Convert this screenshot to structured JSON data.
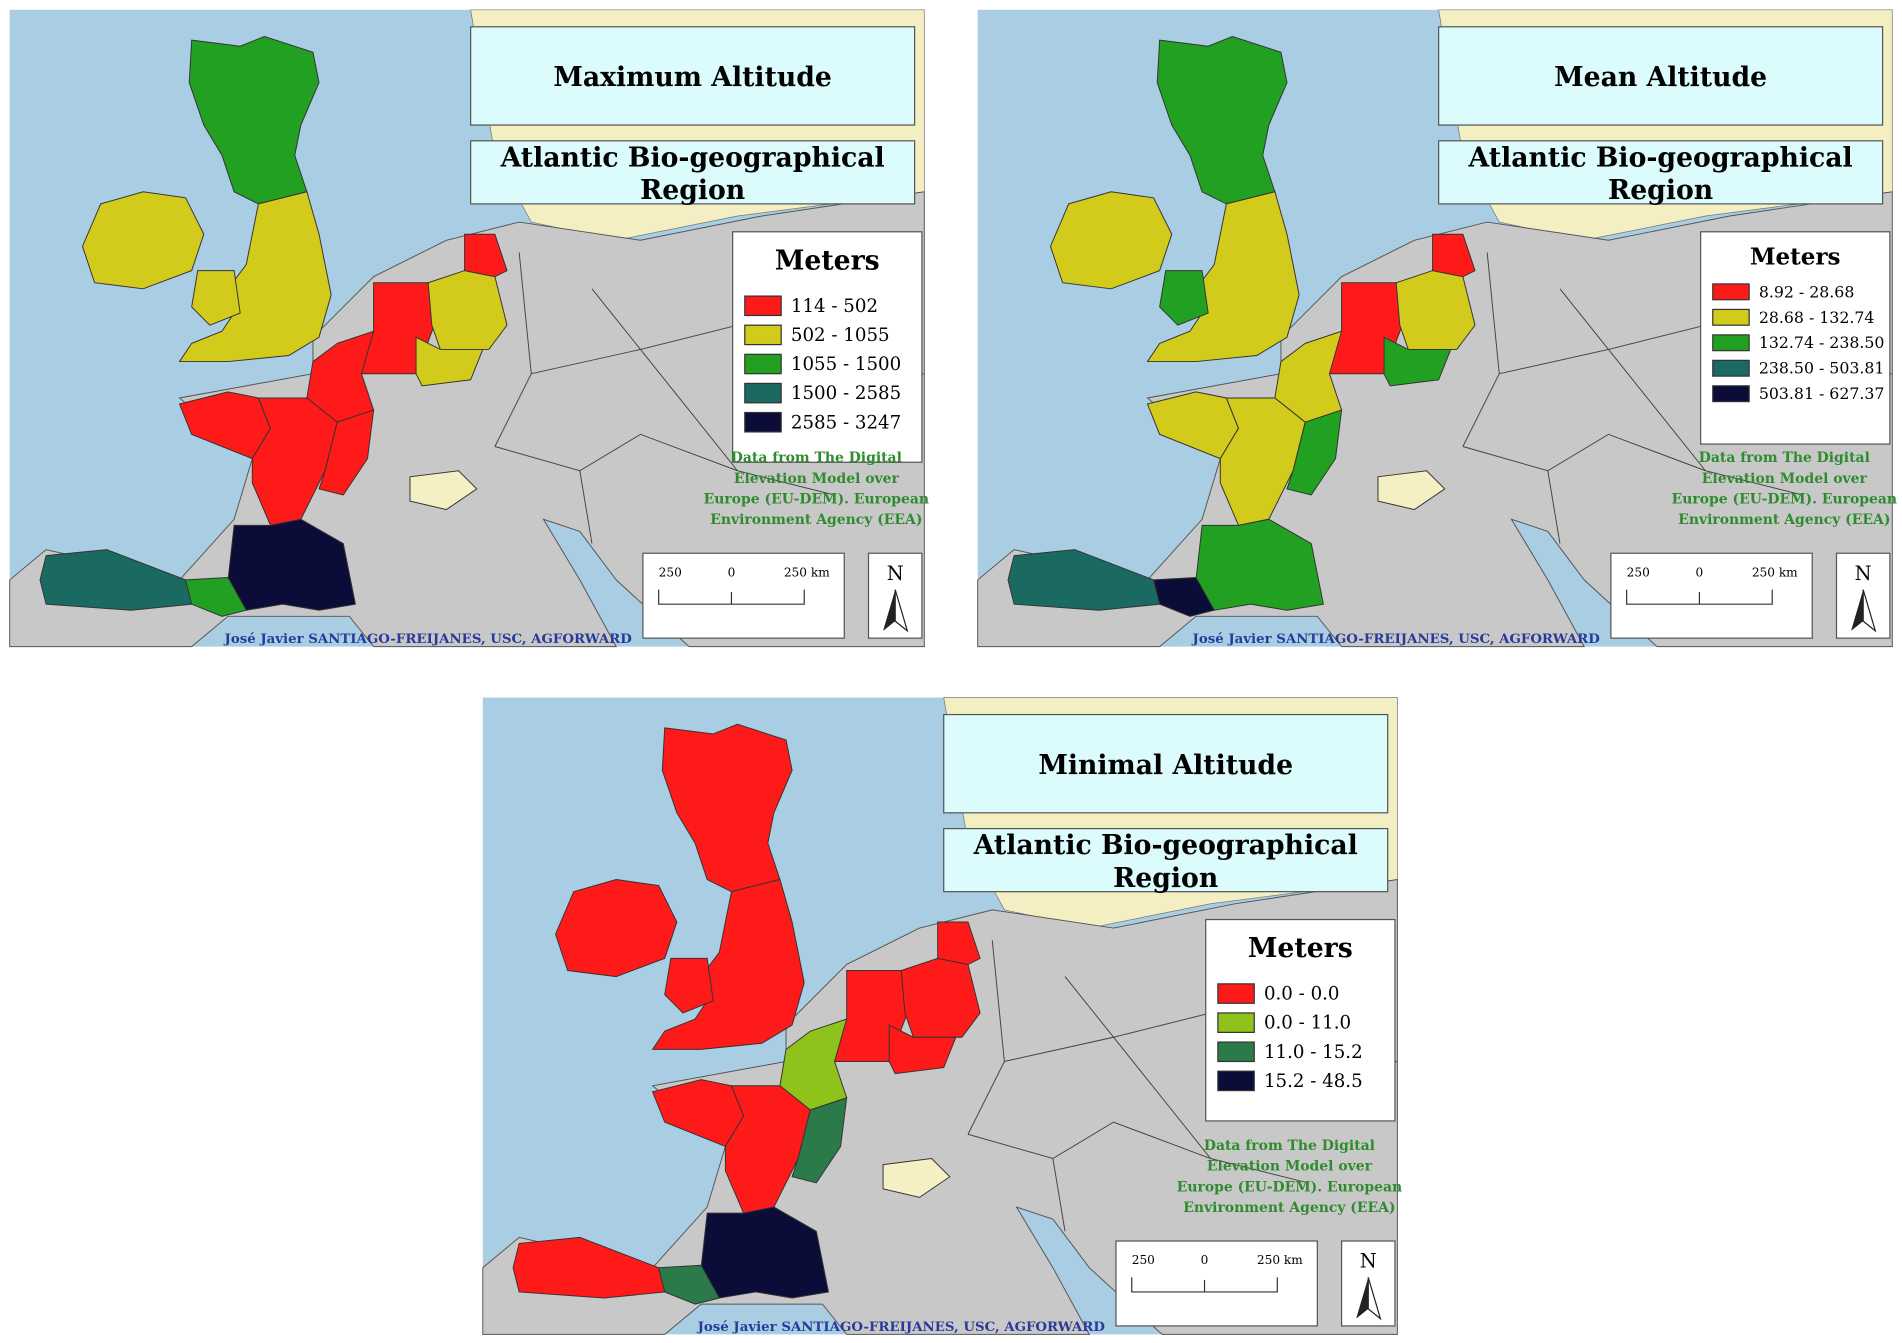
{
  "maps": [
    {
      "title": "Maximum Altitude",
      "subtitle": [
        "Atlantic  Bio-geographical",
        "Region"
      ],
      "legend_title": "Meters",
      "legend": [
        {
          "label": "114 - 502",
          "color": "#ff1a1a"
        },
        {
          "label": "502 - 1055",
          "color": "#d2cb1c"
        },
        {
          "label": "1055 - 1500",
          "color": "#22a022"
        },
        {
          "label": "1500 - 2585",
          "color": "#1b6a62"
        },
        {
          "label": "2585 - 3247",
          "color": "#0c0c38"
        }
      ],
      "source": [
        "Data from The Digital",
        "Elevation Model over",
        "Europe (EU-DEM). European",
        "Environment Agency (EEA)"
      ],
      "scale": [
        "250",
        "0",
        "250 km"
      ],
      "north": "N",
      "credit": "José Javier SANTIAGO-FREIJANES, USC, AGFORWARD",
      "region_colors": [
        "#22a022",
        "#d2cb1c",
        "#d2cb1c",
        "#d2cb1c",
        "#ff1a1a",
        "#d2cb1c",
        "#d2cb1c",
        "#ff1a1a",
        "#ff1a1a",
        "#ff1a1a",
        "#ff1a1a",
        "#ff1a1a",
        "#0c0c38",
        "#1b6a62",
        "#22a022",
        "#f4f0c4"
      ]
    },
    {
      "title": "Mean Altitude",
      "subtitle": [
        "Atlantic  Bio-geographical",
        "Region"
      ],
      "legend_title": "Meters",
      "legend": [
        {
          "label": "8.92 - 28.68",
          "color": "#ff1a1a"
        },
        {
          "label": "28.68 - 132.74",
          "color": "#d2cb1c"
        },
        {
          "label": "132.74 - 238.50",
          "color": "#22a022"
        },
        {
          "label": "238.50 - 503.81",
          "color": "#1b6a62"
        },
        {
          "label": "503.81 - 627.37",
          "color": "#0c0c38"
        }
      ],
      "source": [
        "Data from The Digital",
        "Elevation Model over",
        "Europe (EU-DEM). European",
        "Environment Agency (EEA)"
      ],
      "scale": [
        "250",
        "0",
        "250 km"
      ],
      "north": "N",
      "credit": "José Javier SANTIAGO-FREIJANES, USC, AGFORWARD",
      "region_colors": [
        "#22a022",
        "#d2cb1c",
        "#22a022",
        "#d2cb1c",
        "#ff1a1a",
        "#d2cb1c",
        "#22a022",
        "#ff1a1a",
        "#d2cb1c",
        "#d2cb1c",
        "#d2cb1c",
        "#22a022",
        "#22a022",
        "#1b6a62",
        "#0c0c38",
        "#f4f0c4"
      ]
    },
    {
      "title": "Minimal Altitude",
      "subtitle": [
        "Atlantic  Bio-geographical",
        "Region"
      ],
      "legend_title": "Meters",
      "legend": [
        {
          "label": "0.0 - 0.0",
          "color": "#ff1a1a"
        },
        {
          "label": "0.0 - 11.0",
          "color": "#8fc21a"
        },
        {
          "label": "11.0 - 15.2",
          "color": "#2a7a4a"
        },
        {
          "label": "15.2 - 48.5",
          "color": "#0c0c38"
        }
      ],
      "source": [
        "Data from The Digital",
        "Elevation Model over",
        "Europe (EU-DEM). European",
        "Environment Agency (EEA)"
      ],
      "scale": [
        "250",
        "0",
        "250 km"
      ],
      "north": "N",
      "credit": "José Javier SANTIAGO-FREIJANES, USC, AGFORWARD",
      "region_colors": [
        "#ff1a1a",
        "#ff1a1a",
        "#ff1a1a",
        "#ff1a1a",
        "#ff1a1a",
        "#ff1a1a",
        "#ff1a1a",
        "#ff1a1a",
        "#8fc21a",
        "#ff1a1a",
        "#ff1a1a",
        "#2a7a4a",
        "#0c0c38",
        "#ff1a1a",
        "#2a7a4a",
        "#f4f0c4"
      ]
    }
  ]
}
